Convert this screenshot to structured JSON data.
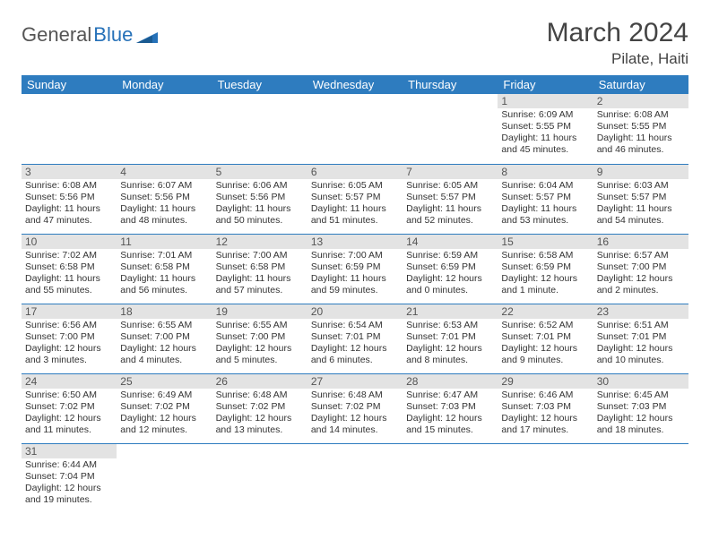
{
  "logo": {
    "general": "General",
    "blue": "Blue"
  },
  "title": "March 2024",
  "location": "Pilate, Haiti",
  "colors": {
    "header_bg": "#2e7cbf",
    "header_text": "#ffffff",
    "daynum_bg": "#e3e3e3",
    "border": "#2e7cbf",
    "logo_blue": "#2671b8"
  },
  "weekdays": [
    "Sunday",
    "Monday",
    "Tuesday",
    "Wednesday",
    "Thursday",
    "Friday",
    "Saturday"
  ],
  "startOffset": 5,
  "days": [
    {
      "n": 1,
      "sunrise": "6:09 AM",
      "sunset": "5:55 PM",
      "dl": "11 hours and 45 minutes."
    },
    {
      "n": 2,
      "sunrise": "6:08 AM",
      "sunset": "5:55 PM",
      "dl": "11 hours and 46 minutes."
    },
    {
      "n": 3,
      "sunrise": "6:08 AM",
      "sunset": "5:56 PM",
      "dl": "11 hours and 47 minutes."
    },
    {
      "n": 4,
      "sunrise": "6:07 AM",
      "sunset": "5:56 PM",
      "dl": "11 hours and 48 minutes."
    },
    {
      "n": 5,
      "sunrise": "6:06 AM",
      "sunset": "5:56 PM",
      "dl": "11 hours and 50 minutes."
    },
    {
      "n": 6,
      "sunrise": "6:05 AM",
      "sunset": "5:57 PM",
      "dl": "11 hours and 51 minutes."
    },
    {
      "n": 7,
      "sunrise": "6:05 AM",
      "sunset": "5:57 PM",
      "dl": "11 hours and 52 minutes."
    },
    {
      "n": 8,
      "sunrise": "6:04 AM",
      "sunset": "5:57 PM",
      "dl": "11 hours and 53 minutes."
    },
    {
      "n": 9,
      "sunrise": "6:03 AM",
      "sunset": "5:57 PM",
      "dl": "11 hours and 54 minutes."
    },
    {
      "n": 10,
      "sunrise": "7:02 AM",
      "sunset": "6:58 PM",
      "dl": "11 hours and 55 minutes."
    },
    {
      "n": 11,
      "sunrise": "7:01 AM",
      "sunset": "6:58 PM",
      "dl": "11 hours and 56 minutes."
    },
    {
      "n": 12,
      "sunrise": "7:00 AM",
      "sunset": "6:58 PM",
      "dl": "11 hours and 57 minutes."
    },
    {
      "n": 13,
      "sunrise": "7:00 AM",
      "sunset": "6:59 PM",
      "dl": "11 hours and 59 minutes."
    },
    {
      "n": 14,
      "sunrise": "6:59 AM",
      "sunset": "6:59 PM",
      "dl": "12 hours and 0 minutes."
    },
    {
      "n": 15,
      "sunrise": "6:58 AM",
      "sunset": "6:59 PM",
      "dl": "12 hours and 1 minute."
    },
    {
      "n": 16,
      "sunrise": "6:57 AM",
      "sunset": "7:00 PM",
      "dl": "12 hours and 2 minutes."
    },
    {
      "n": 17,
      "sunrise": "6:56 AM",
      "sunset": "7:00 PM",
      "dl": "12 hours and 3 minutes."
    },
    {
      "n": 18,
      "sunrise": "6:55 AM",
      "sunset": "7:00 PM",
      "dl": "12 hours and 4 minutes."
    },
    {
      "n": 19,
      "sunrise": "6:55 AM",
      "sunset": "7:00 PM",
      "dl": "12 hours and 5 minutes."
    },
    {
      "n": 20,
      "sunrise": "6:54 AM",
      "sunset": "7:01 PM",
      "dl": "12 hours and 6 minutes."
    },
    {
      "n": 21,
      "sunrise": "6:53 AM",
      "sunset": "7:01 PM",
      "dl": "12 hours and 8 minutes."
    },
    {
      "n": 22,
      "sunrise": "6:52 AM",
      "sunset": "7:01 PM",
      "dl": "12 hours and 9 minutes."
    },
    {
      "n": 23,
      "sunrise": "6:51 AM",
      "sunset": "7:01 PM",
      "dl": "12 hours and 10 minutes."
    },
    {
      "n": 24,
      "sunrise": "6:50 AM",
      "sunset": "7:02 PM",
      "dl": "12 hours and 11 minutes."
    },
    {
      "n": 25,
      "sunrise": "6:49 AM",
      "sunset": "7:02 PM",
      "dl": "12 hours and 12 minutes."
    },
    {
      "n": 26,
      "sunrise": "6:48 AM",
      "sunset": "7:02 PM",
      "dl": "12 hours and 13 minutes."
    },
    {
      "n": 27,
      "sunrise": "6:48 AM",
      "sunset": "7:02 PM",
      "dl": "12 hours and 14 minutes."
    },
    {
      "n": 28,
      "sunrise": "6:47 AM",
      "sunset": "7:03 PM",
      "dl": "12 hours and 15 minutes."
    },
    {
      "n": 29,
      "sunrise": "6:46 AM",
      "sunset": "7:03 PM",
      "dl": "12 hours and 17 minutes."
    },
    {
      "n": 30,
      "sunrise": "6:45 AM",
      "sunset": "7:03 PM",
      "dl": "12 hours and 18 minutes."
    },
    {
      "n": 31,
      "sunrise": "6:44 AM",
      "sunset": "7:04 PM",
      "dl": "12 hours and 19 minutes."
    }
  ],
  "labels": {
    "sunrise": "Sunrise:",
    "sunset": "Sunset:",
    "daylight": "Daylight:"
  }
}
